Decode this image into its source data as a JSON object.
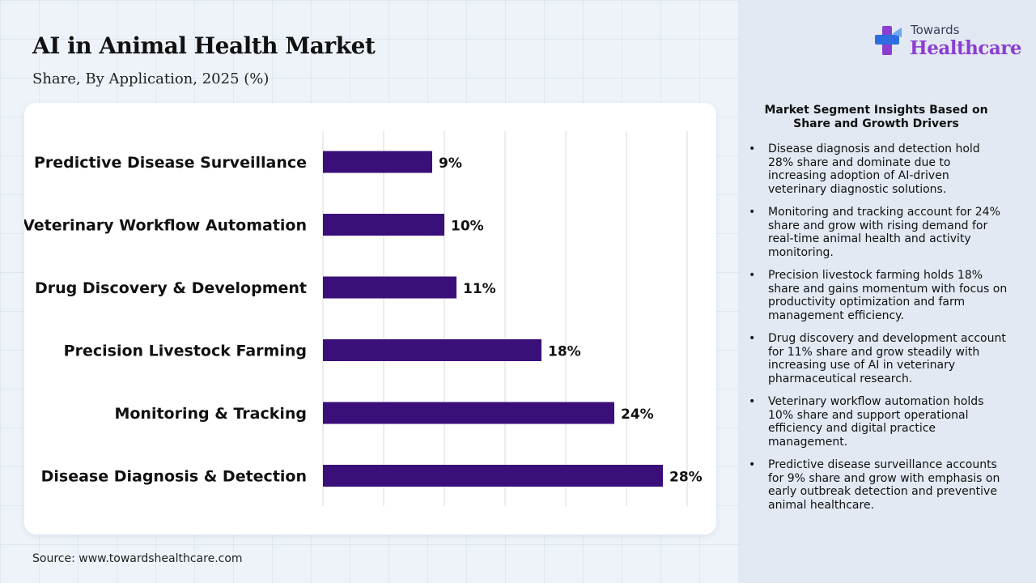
{
  "header": {
    "title": "AI in Animal Health Market",
    "subtitle": "Share, By Application, 2025 (%)"
  },
  "logo": {
    "top_text": "Towards",
    "main_text": "Healthcare"
  },
  "chart_data": {
    "type": "bar",
    "orientation": "horizontal",
    "categories": [
      "Predictive Disease Surveillance",
      "Veterinary Workflow Automation",
      "Drug Discovery & Development",
      "Precision Livestock Farming",
      "Monitoring & Tracking",
      "Disease Diagnosis & Detection"
    ],
    "values": [
      9,
      10,
      11,
      18,
      24,
      28
    ],
    "value_labels": [
      "9%",
      "10%",
      "11%",
      "18%",
      "24%",
      "28%"
    ],
    "xlim": [
      0,
      30
    ],
    "grid": true,
    "bar_color": "#3b0f7a"
  },
  "insights": {
    "heading": "Market Segment Insights Based on Share and Growth Drivers",
    "bullet_symbol": "•",
    "items": [
      "Disease diagnosis and detection hold 28% share and dominate due to increasing adoption of AI-driven veterinary diagnostic solutions.",
      "Monitoring and tracking account for 24% share and grow with rising demand for real-time animal health and activity monitoring.",
      "Precision livestock farming holds 18% share and gains momentum with focus on productivity optimization and farm management efficiency.",
      "Drug discovery and development account for 11% share and grow steadily with increasing use of AI in veterinary pharmaceutical research.",
      "Veterinary workflow automation holds 10% share and support operational efficiency and digital practice management.",
      "Predictive disease surveillance accounts for 9% share and grow with emphasis on early outbreak detection and preventive animal healthcare."
    ]
  },
  "footer": {
    "source": "Source: www.towardshealthcare.com"
  },
  "colors": {
    "accent": "#3b0f7a",
    "logo_purple": "#8a3fd0",
    "logo_blue": "#2e6de0"
  }
}
